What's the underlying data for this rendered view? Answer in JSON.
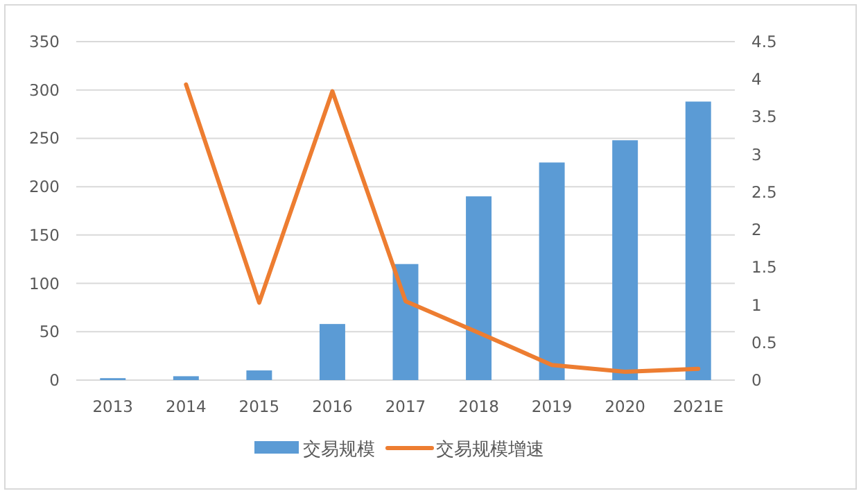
{
  "chart_data": {
    "type": "bar",
    "categories": [
      "2013",
      "2014",
      "2015",
      "2016",
      "2017",
      "2018",
      "2019",
      "2020",
      "2021E"
    ],
    "series": [
      {
        "name": "交易规模",
        "color": "#5b9bd5",
        "values": [
          2,
          4,
          10,
          58,
          120,
          190,
          225,
          248,
          288
        ]
      },
      {
        "name": "交易规模增速",
        "color": "#ed7d31",
        "type": "line",
        "axis": "y2",
        "values": [
          null,
          3.93,
          1.03,
          3.84,
          1.05,
          0.63,
          0.2,
          0.11,
          0.15
        ]
      }
    ],
    "ylim": [
      0,
      350
    ],
    "yticks": [
      0,
      50,
      100,
      150,
      200,
      250,
      300,
      350
    ],
    "y2lim": [
      0,
      4.5
    ],
    "y2ticks": [
      0,
      0.5,
      1,
      1.5,
      2,
      2.5,
      3,
      3.5,
      4,
      4.5
    ],
    "grid": "y",
    "legend": "bottom"
  }
}
